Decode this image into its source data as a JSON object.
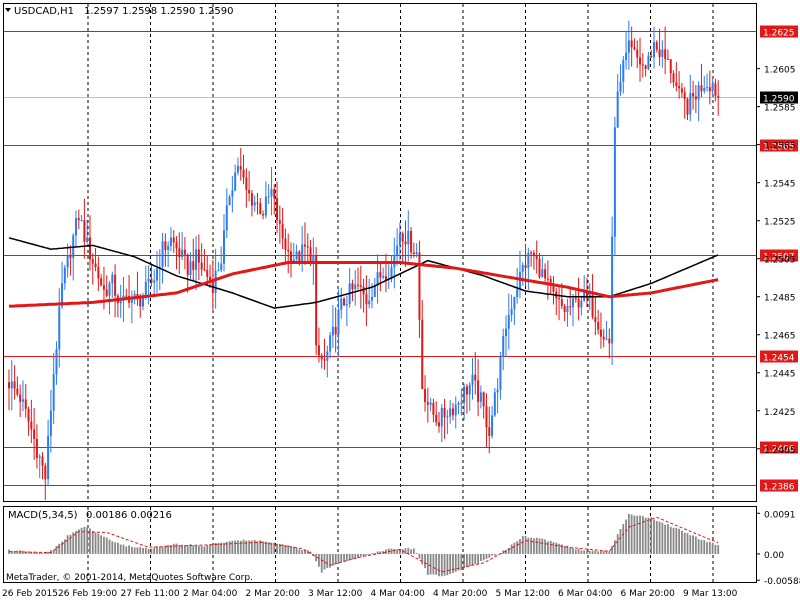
{
  "header": {
    "symbol": "USDCAD,H1",
    "ohlc": "1.2597 1.2598 1.2590 1.2590",
    "menu_icon": "triangle-down-icon"
  },
  "footer": {
    "copyright": "MetaTrader, © 2001-2014, MetaQuotes Software Corp."
  },
  "colors": {
    "background": "#ffffff",
    "bull": "#2b7bf2",
    "bear": "#e01818",
    "ma_fast": "#e01818",
    "ma_slow": "#000000",
    "level_line": "#e01818",
    "grid": "#000000",
    "macd_hist": "#888888",
    "macd_signal": "#e01818"
  },
  "chart_data": [
    {
      "type": "candlestick",
      "symbol": "USDCAD",
      "timeframe": "H1",
      "price_axis_ticks": [
        "1.2605",
        "1.2585",
        "1.2565",
        "1.2545",
        "1.2525",
        "1.2505",
        "1.2485",
        "1.2465",
        "1.2445",
        "1.2425",
        "1.2405"
      ],
      "ylim": [
        1.2377,
        1.2639
      ],
      "current_price": "1.2590",
      "horizontal_levels": [
        "1.2625",
        "1.2565",
        "1.2507",
        "1.2454",
        "1.2406",
        "1.2386"
      ],
      "time_labels": [
        "26 Feb 2015",
        "26 Feb 19:00",
        "27 Feb 11:00",
        "2 Mar 04:00",
        "2 Mar 20:00",
        "3 Mar 12:00",
        "4 Mar 04:00",
        "4 Mar 20:00",
        "5 Mar 12:00",
        "6 Mar 04:00",
        "6 Mar 20:00",
        "9 Mar 13:00"
      ],
      "anchors": [
        [
          0,
          1.244
        ],
        [
          4,
          1.2432
        ],
        [
          8,
          1.2415
        ],
        [
          11,
          1.24
        ],
        [
          13,
          1.239
        ],
        [
          16,
          1.2445
        ],
        [
          19,
          1.249
        ],
        [
          22,
          1.251
        ],
        [
          25,
          1.2528
        ],
        [
          28,
          1.2512
        ],
        [
          31,
          1.25
        ],
        [
          34,
          1.2488
        ],
        [
          37,
          1.2492
        ],
        [
          40,
          1.248
        ],
        [
          43,
          1.2486
        ],
        [
          46,
          1.2482
        ],
        [
          49,
          1.2488
        ],
        [
          52,
          1.2495
        ],
        [
          55,
          1.251
        ],
        [
          58,
          1.2515
        ],
        [
          61,
          1.2508
        ],
        [
          64,
          1.25
        ],
        [
          67,
          1.2505
        ],
        [
          70,
          1.2498
        ],
        [
          73,
          1.2492
        ],
        [
          76,
          1.2505
        ],
        [
          79,
          1.254
        ],
        [
          82,
          1.2555
        ],
        [
          85,
          1.254
        ],
        [
          88,
          1.2535
        ],
        [
          91,
          1.253
        ],
        [
          94,
          1.254
        ],
        [
          97,
          1.252
        ],
        [
          100,
          1.2508
        ],
        [
          103,
          1.2505
        ],
        [
          106,
          1.251
        ],
        [
          109,
          1.2505
        ],
        [
          110,
          1.2455
        ],
        [
          113,
          1.245
        ],
        [
          116,
          1.2465
        ],
        [
          119,
          1.248
        ],
        [
          122,
          1.2487
        ],
        [
          125,
          1.249
        ],
        [
          128,
          1.2483
        ],
        [
          131,
          1.2492
        ],
        [
          134,
          1.2498
        ],
        [
          137,
          1.25
        ],
        [
          140,
          1.252
        ],
        [
          143,
          1.2515
        ],
        [
          146,
          1.2508
        ],
        [
          148,
          1.2438
        ],
        [
          151,
          1.2425
        ],
        [
          154,
          1.242
        ],
        [
          157,
          1.2425
        ],
        [
          160,
          1.2428
        ],
        [
          163,
          1.2435
        ],
        [
          166,
          1.244
        ],
        [
          169,
          1.243
        ],
        [
          172,
          1.2415
        ],
        [
          175,
          1.244
        ],
        [
          178,
          1.247
        ],
        [
          181,
          1.2487
        ],
        [
          184,
          1.25
        ],
        [
          187,
          1.2508
        ],
        [
          190,
          1.25
        ],
        [
          193,
          1.249
        ],
        [
          196,
          1.2482
        ],
        [
          199,
          1.2478
        ],
        [
          202,
          1.248
        ],
        [
          205,
          1.2485
        ],
        [
          208,
          1.2482
        ],
        [
          211,
          1.2472
        ],
        [
          213,
          1.2465
        ],
        [
          215,
          1.246
        ],
        [
          217,
          1.2575
        ],
        [
          219,
          1.2602
        ],
        [
          222,
          1.2615
        ],
        [
          225,
          1.261
        ],
        [
          228,
          1.2605
        ],
        [
          231,
          1.2618
        ],
        [
          234,
          1.2612
        ],
        [
          237,
          1.2605
        ],
        [
          240,
          1.259
        ],
        [
          243,
          1.2585
        ],
        [
          246,
          1.2592
        ],
        [
          249,
          1.2598
        ],
        [
          252,
          1.2597
        ],
        [
          254,
          1.259
        ]
      ],
      "ma_fast_anchors": [
        [
          0,
          1.248
        ],
        [
          30,
          1.2482
        ],
        [
          60,
          1.2487
        ],
        [
          80,
          1.2497
        ],
        [
          100,
          1.2503
        ],
        [
          120,
          1.2503
        ],
        [
          140,
          1.2503
        ],
        [
          160,
          1.25
        ],
        [
          180,
          1.2495
        ],
        [
          200,
          1.249
        ],
        [
          215,
          1.2485
        ],
        [
          230,
          1.2487
        ],
        [
          254,
          1.2494
        ]
      ],
      "ma_slow_anchors": [
        [
          0,
          1.2516
        ],
        [
          15,
          1.251
        ],
        [
          30,
          1.2512
        ],
        [
          45,
          1.2506
        ],
        [
          60,
          1.2496
        ],
        [
          80,
          1.2487
        ],
        [
          95,
          1.2479
        ],
        [
          110,
          1.2482
        ],
        [
          130,
          1.249
        ],
        [
          150,
          1.2504
        ],
        [
          170,
          1.2496
        ],
        [
          185,
          1.2488
        ],
        [
          200,
          1.2485
        ],
        [
          215,
          1.2485
        ],
        [
          230,
          1.2492
        ],
        [
          254,
          1.2507
        ]
      ]
    },
    {
      "type": "bar",
      "indicator": "MACD(5,34,5)",
      "value_text": "0.00186 0.00216",
      "axis_ticks": [
        "0.0091",
        "0.00",
        "-0.00588"
      ],
      "ylim": [
        -0.0065,
        0.0105
      ],
      "anchors": [
        [
          0,
          0.0008
        ],
        [
          12,
          0.0002
        ],
        [
          16,
          0.001
        ],
        [
          21,
          0.004
        ],
        [
          27,
          0.0062
        ],
        [
          32,
          0.0045
        ],
        [
          40,
          0.002
        ],
        [
          50,
          0.0012
        ],
        [
          60,
          0.0022
        ],
        [
          70,
          0.0018
        ],
        [
          80,
          0.003
        ],
        [
          90,
          0.003
        ],
        [
          100,
          0.0018
        ],
        [
          108,
          0.0005
        ],
        [
          112,
          -0.004
        ],
        [
          118,
          -0.002
        ],
        [
          125,
          -0.0008
        ],
        [
          135,
          0.001
        ],
        [
          145,
          0.0012
        ],
        [
          150,
          -0.0045
        ],
        [
          156,
          -0.005
        ],
        [
          162,
          -0.0035
        ],
        [
          170,
          -0.0015
        ],
        [
          178,
          0.001
        ],
        [
          184,
          0.004
        ],
        [
          192,
          0.0032
        ],
        [
          205,
          0.0008
        ],
        [
          215,
          0.0005
        ],
        [
          218,
          0.0045
        ],
        [
          222,
          0.009
        ],
        [
          230,
          0.008
        ],
        [
          240,
          0.0055
        ],
        [
          248,
          0.0032
        ],
        [
          254,
          0.002
        ]
      ],
      "signal_anchors": [
        [
          0,
          0.0005
        ],
        [
          15,
          0.0003
        ],
        [
          25,
          0.005
        ],
        [
          35,
          0.0048
        ],
        [
          50,
          0.0015
        ],
        [
          70,
          0.002
        ],
        [
          90,
          0.0026
        ],
        [
          105,
          0.0012
        ],
        [
          115,
          -0.0025
        ],
        [
          125,
          -0.0008
        ],
        [
          140,
          0.001
        ],
        [
          155,
          -0.004
        ],
        [
          170,
          -0.002
        ],
        [
          185,
          0.003
        ],
        [
          200,
          0.0015
        ],
        [
          215,
          0.0006
        ],
        [
          222,
          0.006
        ],
        [
          232,
          0.0082
        ],
        [
          245,
          0.0048
        ],
        [
          254,
          0.0025
        ]
      ]
    }
  ]
}
